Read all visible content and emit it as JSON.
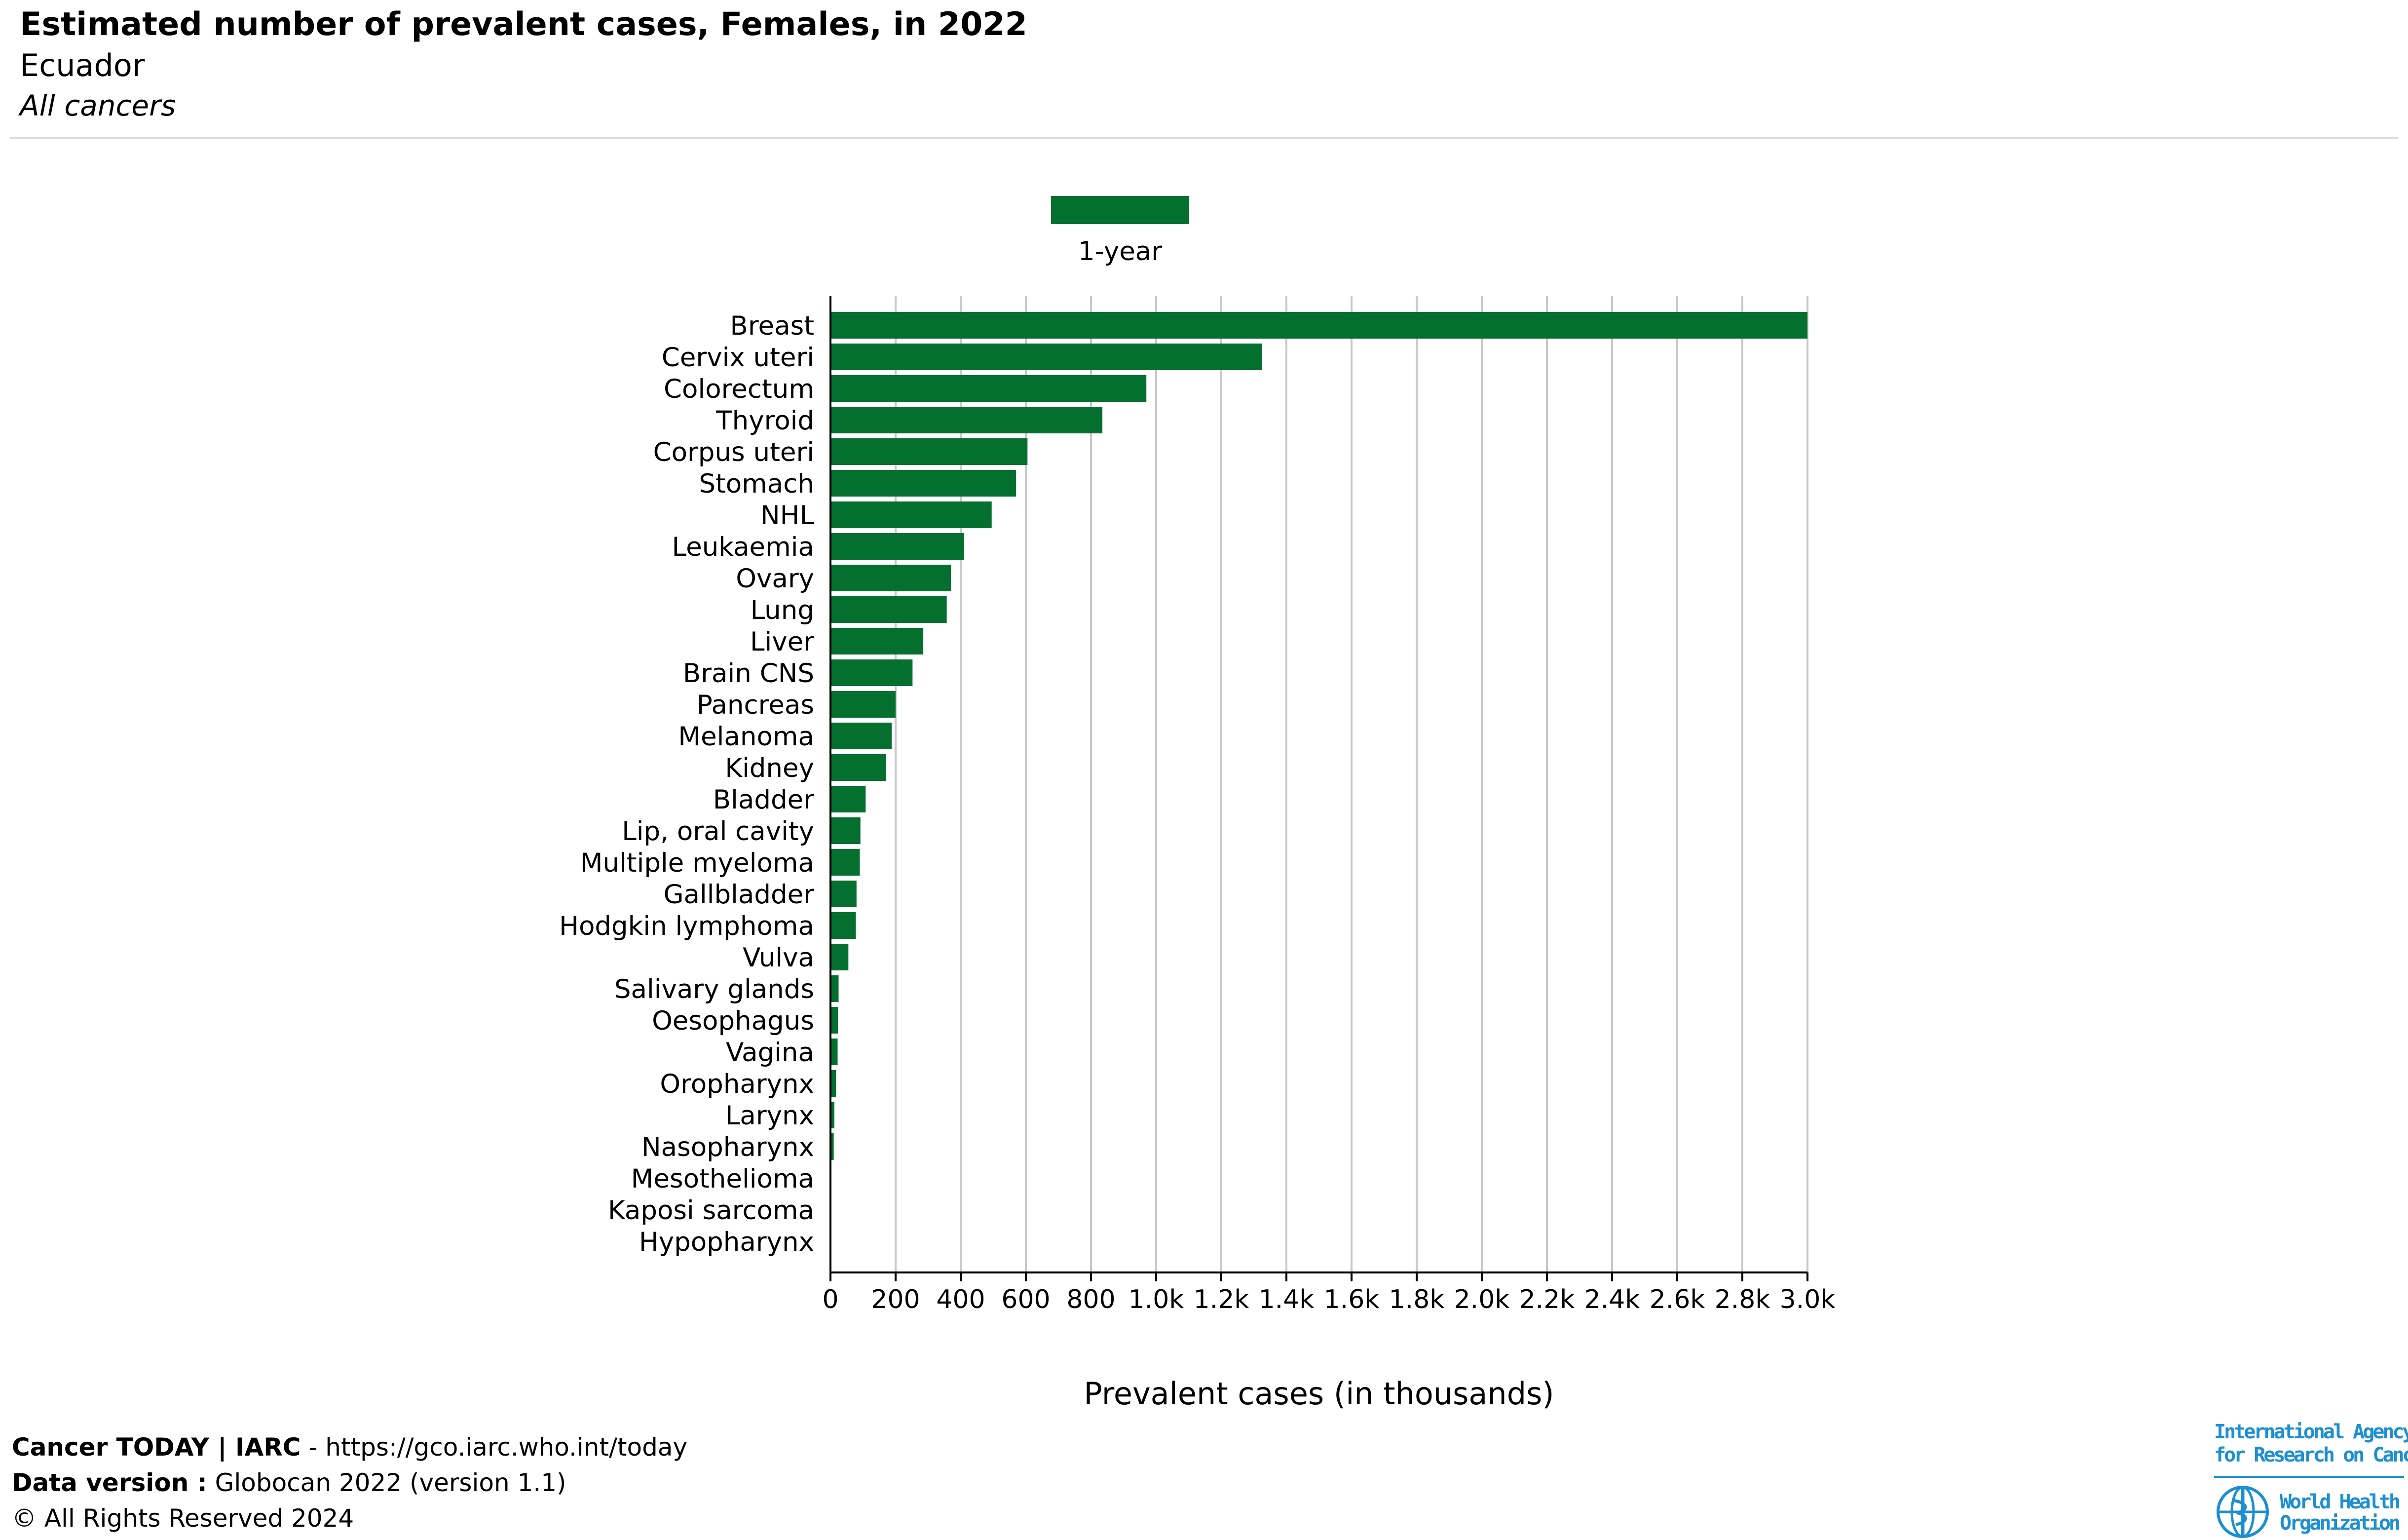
{
  "header": {
    "title": "Estimated number of prevalent cases, Females, in 2022",
    "subtitle": "Ecuador",
    "subsubtitle": "All cancers"
  },
  "colors": {
    "bar": "#046f2e",
    "grid": "#c8c8c8",
    "axis": "#000000",
    "who_blue": "#1b8fd2"
  },
  "chart_data": {
    "type": "bar",
    "orientation": "horizontal",
    "xlabel": "Prevalent cases (in thousands)",
    "xlim": [
      0,
      3000
    ],
    "ticks": [
      0,
      200,
      400,
      600,
      800,
      1000,
      1200,
      1400,
      1600,
      1800,
      2000,
      2200,
      2400,
      2600,
      2800,
      3000
    ],
    "tick_labels": [
      "0",
      "200",
      "400",
      "600",
      "800",
      "1.0k",
      "1.2k",
      "1.4k",
      "1.6k",
      "1.8k",
      "2.0k",
      "2.2k",
      "2.4k",
      "2.6k",
      "2.8k",
      "3.0k"
    ],
    "grid": true,
    "legend": {
      "placement": "top-center",
      "entries": [
        "1-year"
      ]
    },
    "series": [
      {
        "name": "1-year",
        "categories": [
          "Breast",
          "Cervix uteri",
          "Colorectum",
          "Thyroid",
          "Corpus uteri",
          "Stomach",
          "NHL",
          "Leukaemia",
          "Ovary",
          "Lung",
          "Liver",
          "Brain CNS",
          "Pancreas",
          "Melanoma",
          "Kidney",
          "Bladder",
          "Lip, oral cavity",
          "Multiple myeloma",
          "Gallbladder",
          "Hodgkin lymphoma",
          "Vulva",
          "Salivary glands",
          "Oesophagus",
          "Vagina",
          "Oropharynx",
          "Larynx",
          "Nasopharynx",
          "Mesothelioma",
          "Kaposi sarcoma",
          "Hypopharynx"
        ],
        "values": [
          3000,
          1325,
          970,
          835,
          605,
          570,
          495,
          410,
          370,
          357,
          285,
          252,
          200,
          188,
          170,
          108,
          92,
          90,
          80,
          78,
          55,
          25,
          23,
          22,
          17,
          12,
          10,
          1,
          1,
          0
        ]
      }
    ]
  },
  "footer": {
    "line1_bold": "Cancer TODAY | IARC",
    "line1_rest": " - https://gco.iarc.who.int/today",
    "line2_bold": "Data version :",
    "line2_rest": " Globocan 2022 (version 1.1)",
    "line3": "© All Rights Reserved 2024"
  },
  "logos": {
    "iarc_line1": "International Agency",
    "iarc_line2": "for Research on Cancer",
    "who_line1": "World Health",
    "who_line2": "Organization",
    "who_icon": "who-emblem-icon"
  }
}
